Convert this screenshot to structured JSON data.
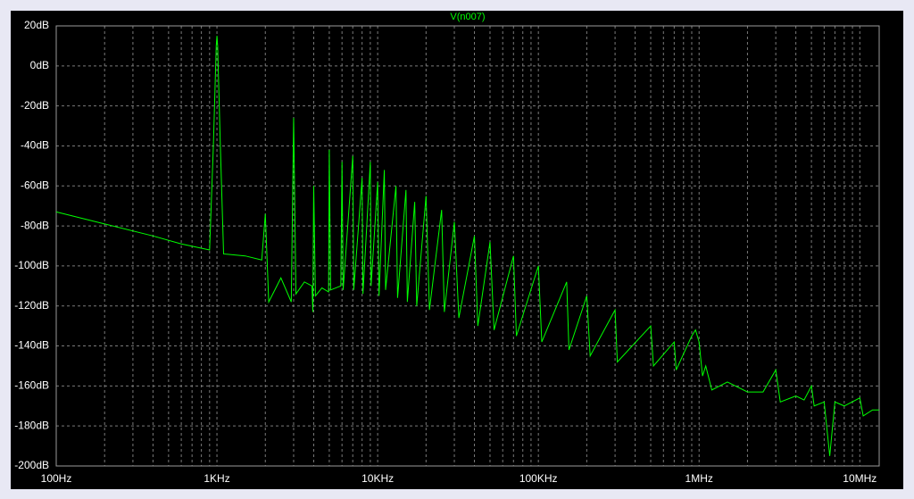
{
  "chart_data": {
    "type": "line",
    "title": "V(n007)",
    "xscale": "log",
    "grid": true,
    "xlim": [
      100,
      13200000
    ],
    "ylim": [
      -200,
      20
    ],
    "xticks": [
      {
        "value": 100,
        "label": "100Hz"
      },
      {
        "value": 1000,
        "label": "1KHz"
      },
      {
        "value": 10000,
        "label": "10KHz"
      },
      {
        "value": 100000,
        "label": "100KHz"
      },
      {
        "value": 1000000,
        "label": "1MHz"
      },
      {
        "value": 10000000,
        "label": "10MHz"
      }
    ],
    "yticks": [
      {
        "value": 20,
        "label": "20dB"
      },
      {
        "value": 0,
        "label": "0dB"
      },
      {
        "value": -20,
        "label": "-20dB"
      },
      {
        "value": -40,
        "label": "-40dB"
      },
      {
        "value": -60,
        "label": "-60dB"
      },
      {
        "value": -80,
        "label": "-80dB"
      },
      {
        "value": -100,
        "label": "-100dB"
      },
      {
        "value": -120,
        "label": "-120dB"
      },
      {
        "value": -140,
        "label": "-140dB"
      },
      {
        "value": -160,
        "label": "-160dB"
      },
      {
        "value": -180,
        "label": "-180dB"
      },
      {
        "value": -200,
        "label": "-200dB"
      }
    ],
    "series": [
      {
        "color": "#00ff00",
        "x": [
          100,
          200,
          400,
          600,
          900,
          950,
          990,
          1000,
          1010,
          1050,
          1100,
          1500,
          1900,
          2000,
          2100,
          2500,
          2900,
          3000,
          3100,
          3500,
          3900,
          3950,
          4000,
          4100,
          4500,
          4950,
          5000,
          5100,
          5900,
          6000,
          6100,
          7000,
          7100,
          8000,
          8100,
          9000,
          9100,
          10000,
          10200,
          11000,
          11200,
          13000,
          13300,
          15000,
          15300,
          17000,
          17500,
          20000,
          21000,
          25000,
          26000,
          30000,
          32000,
          40000,
          42000,
          50000,
          53000,
          70000,
          73000,
          100000,
          105000,
          150000,
          155000,
          200000,
          210000,
          300000,
          310000,
          500000,
          520000,
          700000,
          720000,
          900000,
          950000,
          1000000,
          1050000,
          1100000,
          1200000,
          1500000,
          2000000,
          2500000,
          3000000,
          3200000,
          4000000,
          4500000,
          5000000,
          5200000,
          6000000,
          6500000,
          7000000,
          8000000,
          10000000,
          10500000,
          12000000,
          13200000
        ],
        "values": [
          -73,
          -79,
          -85,
          -89,
          -92,
          -40,
          10,
          15,
          10,
          -40,
          -94,
          -95,
          -97,
          -74,
          -118,
          -106,
          -118,
          -26,
          -114,
          -108,
          -110,
          -123,
          -60,
          -115,
          -111,
          -113,
          -42,
          -112,
          -110,
          -48,
          -112,
          -45,
          -112,
          -56,
          -114,
          -48,
          -110,
          -58,
          -115,
          -52,
          -112,
          -60,
          -116,
          -62,
          -118,
          -68,
          -120,
          -65,
          -122,
          -72,
          -123,
          -78,
          -126,
          -85,
          -130,
          -88,
          -132,
          -95,
          -135,
          -100,
          -138,
          -108,
          -142,
          -115,
          -145,
          -122,
          -148,
          -130,
          -150,
          -138,
          -152,
          -135,
          -132,
          -138,
          -155,
          -150,
          -162,
          -158,
          -163,
          -163,
          -152,
          -168,
          -165,
          -167,
          -160,
          -170,
          -168,
          -195,
          -168,
          -170,
          -166,
          -175,
          -172,
          -172
        ]
      }
    ]
  }
}
